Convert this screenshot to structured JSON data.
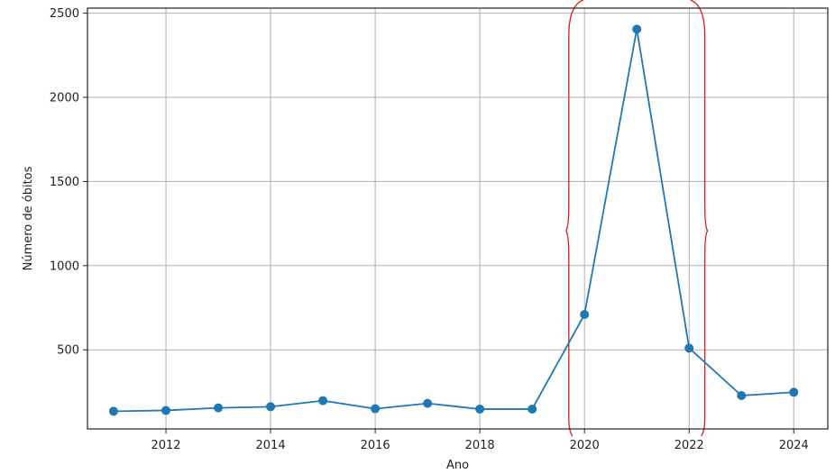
{
  "chart_data": {
    "type": "line",
    "title": "",
    "xlabel": "Ano",
    "ylabel": "Número de óbitos",
    "x": [
      2011,
      2012,
      2013,
      2014,
      2015,
      2016,
      2017,
      2018,
      2019,
      2020,
      2021,
      2022,
      2023,
      2024
    ],
    "series": [
      {
        "values": [
          135,
          140,
          155,
          162,
          198,
          150,
          182,
          148,
          148,
          710,
          2405,
          510,
          228,
          248
        ],
        "color": "#1f77b4",
        "marker": "circle"
      }
    ],
    "xticks": [
      2012,
      2014,
      2016,
      2018,
      2020,
      2022,
      2024
    ],
    "yticks": [
      500,
      1000,
      1500,
      2000,
      2500
    ],
    "xlim": [
      2010.5,
      2024.65
    ],
    "ylim": [
      30,
      2530
    ],
    "grid": true,
    "annotation": {
      "type": "curly-braces",
      "color": "#e31a1c",
      "x_range": [
        2019.7,
        2022.3
      ]
    }
  }
}
